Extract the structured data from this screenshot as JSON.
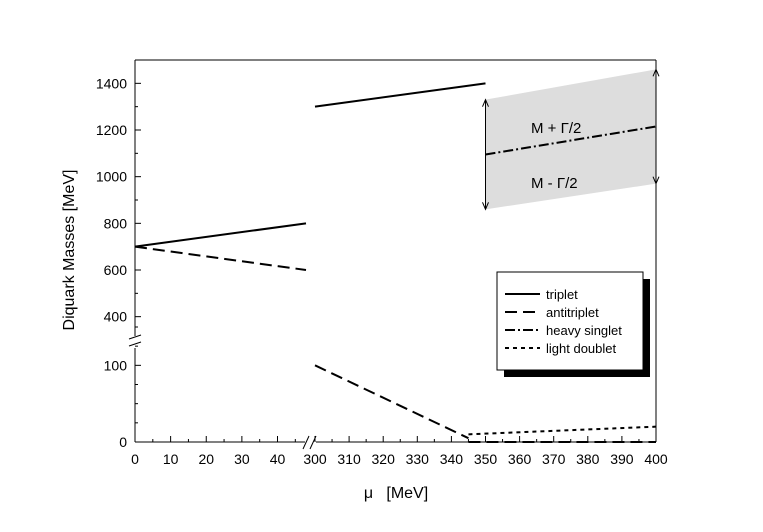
{
  "chart_data": {
    "type": "line",
    "xlabel": "μ   [MeV]",
    "ylabel": "Diquark Masses  [MeV]",
    "x_axis_broken": true,
    "y_axis_broken": true,
    "x_segments": [
      {
        "range": [
          0,
          48
        ],
        "ticks": [
          0,
          10,
          20,
          30,
          40
        ]
      },
      {
        "range": [
          300,
          400
        ],
        "ticks": [
          300,
          310,
          320,
          330,
          340,
          350,
          360,
          370,
          380,
          390,
          400
        ]
      }
    ],
    "y_segments": [
      {
        "range": [
          0,
          150
        ],
        "ticks": [
          0,
          100
        ]
      },
      {
        "range": [
          300,
          1500
        ],
        "ticks": [
          400,
          600,
          800,
          1000,
          1200,
          1400
        ]
      }
    ],
    "series": [
      {
        "name": "triplet",
        "style": "solid",
        "segments": [
          [
            [
              0,
              700
            ],
            [
              48,
              800
            ]
          ],
          [
            [
              300,
              1300
            ],
            [
              350,
              1400
            ]
          ]
        ]
      },
      {
        "name": "antitriplet",
        "style": "dashed",
        "segments": [
          [
            [
              0,
              700
            ],
            [
              48,
              600
            ]
          ],
          [
            [
              300,
              100
            ],
            [
              345,
              5
            ]
          ],
          [
            [
              345,
              0
            ],
            [
              400,
              0
            ]
          ]
        ]
      },
      {
        "name": "heavy singlet",
        "style": "dashdot",
        "segments": [
          [
            [
              350,
              1095
            ],
            [
              400,
              1215
            ]
          ]
        ]
      },
      {
        "name": "light doublet",
        "style": "dotted",
        "segments": [
          [
            [
              345,
              10
            ],
            [
              400,
              20
            ]
          ]
        ]
      }
    ],
    "band": {
      "fill": "#dddddd",
      "upper": [
        [
          350,
          1330
        ],
        [
          400,
          1460
        ]
      ],
      "lower": [
        [
          350,
          860
        ],
        [
          400,
          970
        ]
      ],
      "upper_label": "M + Γ/2",
      "lower_label": "M - Γ/2"
    },
    "legend": {
      "position": "right-middle",
      "entries": [
        "triplet",
        "antitriplet",
        "heavy singlet",
        "light doublet"
      ]
    }
  }
}
